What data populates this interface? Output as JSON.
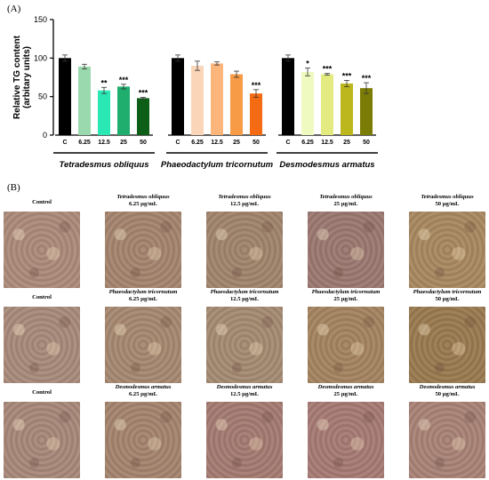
{
  "panels": {
    "a_label": "(A)",
    "b_label": "(B)"
  },
  "chart_data": {
    "type": "bar",
    "ylabel": "Relative TG content\n(arbitary units)",
    "ylim": [
      0,
      150
    ],
    "yticks": [
      0,
      50,
      100,
      150
    ],
    "grid": false,
    "groups": [
      {
        "name": "Tetradesmus obliquus",
        "categories": [
          "C",
          "6.25",
          "12.5",
          "25",
          "50"
        ],
        "values": [
          100,
          89,
          58,
          63,
          48
        ],
        "errors": [
          4,
          3,
          4,
          3,
          1
        ],
        "significance": [
          "",
          "",
          "**",
          "***",
          "***"
        ],
        "colors": [
          "#000000",
          "#9ad9ae",
          "#29e8b4",
          "#1fae6e",
          "#0d5e16"
        ]
      },
      {
        "name": "Phaeodactylum tricornutum",
        "categories": [
          "C",
          "6.25",
          "12.5",
          "25",
          "50"
        ],
        "values": [
          100,
          90,
          93,
          79,
          54
        ],
        "errors": [
          4,
          6,
          2,
          4,
          5
        ],
        "significance": [
          "",
          "",
          "",
          "",
          "***"
        ],
        "colors": [
          "#000000",
          "#fbd5b8",
          "#fcb57b",
          "#f89b47",
          "#f56b13"
        ]
      },
      {
        "name": "Desmodesmus armatus",
        "categories": [
          "C",
          "6.25",
          "12.5",
          "25",
          "50"
        ],
        "values": [
          100,
          82,
          79,
          67,
          61
        ],
        "errors": [
          4,
          5,
          1,
          4,
          7
        ],
        "significance": [
          "",
          "*",
          "***",
          "***",
          "***"
        ],
        "colors": [
          "#000000",
          "#eefabf",
          "#e3ea80",
          "#bbb71c",
          "#7b7c06"
        ]
      }
    ]
  },
  "micrographs": {
    "rows": [
      {
        "cells": [
          {
            "title": "",
            "conc": "Control",
            "color": "#ab8a7a"
          },
          {
            "title": "Tetradesmus obliquus",
            "conc": "6.25 µg/mL",
            "color": "#a4846e"
          },
          {
            "title": "Tetradesmus obliquus",
            "conc": "12.5 µg/mL",
            "color": "#a0846c"
          },
          {
            "title": "Tetradesmus obliquus",
            "conc": "25 µg/mL",
            "color": "#9a7870"
          },
          {
            "title": "Tetradesmus obliquus",
            "conc": "50 µg/mL",
            "color": "#a88860"
          }
        ]
      },
      {
        "cells": [
          {
            "title": "",
            "conc": "Control",
            "color": "#a88a7a"
          },
          {
            "title": "Phaeodactylum tricornutum",
            "conc": "6.25 µg/mL",
            "color": "#a68870"
          },
          {
            "title": "Phaeodactylum tricornutum",
            "conc": "12.5 µg/mL",
            "color": "#a58a72"
          },
          {
            "title": "Phaeodactylum tricornutum",
            "conc": "25 µg/mL",
            "color": "#a58460"
          },
          {
            "title": "Phaeodactylum tricornutum",
            "conc": "50 µg/mL",
            "color": "#9a7a50"
          }
        ]
      },
      {
        "cells": [
          {
            "title": "",
            "conc": "Control",
            "color": "#a8887a"
          },
          {
            "title": "Desmodesmus armatus",
            "conc": "6.25 µg/mL",
            "color": "#a4846e"
          },
          {
            "title": "Desmodesmus armatus",
            "conc": "12.5 µg/mL",
            "color": "#a47a72"
          },
          {
            "title": "Desmodesmus armatus",
            "conc": "25 µg/mL",
            "color": "#a67a74"
          },
          {
            "title": "Desmodesmus armatus",
            "conc": "50 µg/mL",
            "color": "#a88276"
          }
        ]
      }
    ]
  }
}
